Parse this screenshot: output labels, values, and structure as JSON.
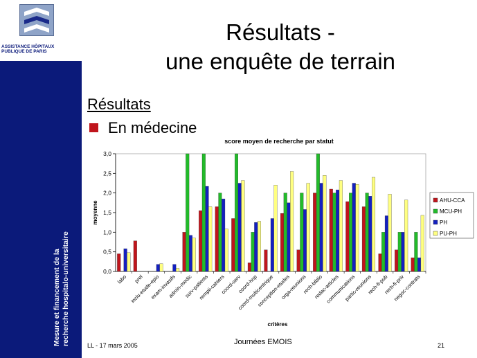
{
  "slide": {
    "title_line1": "Résultats -",
    "title_line2": "une enquête de terrain",
    "heading": "Résultats",
    "bullet": "En médecine",
    "footer_left": "LL - 17 mars 2005",
    "footer_center": "Journées EMOIS",
    "footer_right": "21"
  },
  "sidebar": {
    "logo_line1": "ASSISTANCE HÔPITAUX",
    "logo_line2": "PUBLIQUE DE PARIS",
    "caption_line1": "Mesure et financement de la",
    "caption_line2": "recherche hospitalo-universitaire",
    "background": "#0b1a7a"
  },
  "chart_data": {
    "type": "bar",
    "title": "score moyen de recherche par statut",
    "xlabel": "critères",
    "ylabel": "moyenne",
    "ylim": [
      0,
      3
    ],
    "yticks": [
      "0,0",
      "0,5",
      "1,0",
      "1,5",
      "2,0",
      "2,5",
      "3,0"
    ],
    "grid": false,
    "legend_position": "right",
    "categories": [
      "labo",
      "prel",
      "inclu-etude-epio",
      "exam-invasifs",
      "admin-medic",
      "surv-patients",
      "rempli-cahiers",
      "coord-serv",
      "coord-hop",
      "coord-multicentrique",
      "conception-etudes",
      "orga-reunions",
      "rech-biblio",
      "redac-articles",
      "communications",
      "partic-reunions",
      "rech-fi-pub",
      "rech-fi-priv",
      "negoc-contrats"
    ],
    "series": [
      {
        "name": "AHU-CCA",
        "color": "#c0151c",
        "values": [
          0.45,
          0.78,
          0.0,
          0.0,
          1.0,
          1.55,
          1.65,
          1.35,
          0.22,
          0.55,
          1.48,
          0.55,
          2.0,
          2.1,
          1.78,
          1.65,
          0.45,
          0.55,
          0.35
        ]
      },
      {
        "name": "MCU-PH",
        "color": "#22bb2a",
        "values": [
          0.0,
          0.0,
          0.0,
          0.0,
          3.0,
          3.0,
          2.0,
          3.0,
          1.0,
          0.0,
          2.0,
          2.0,
          3.0,
          2.0,
          2.0,
          2.0,
          1.0,
          1.0,
          1.0
        ]
      },
      {
        "name": "PH",
        "color": "#1420c0",
        "values": [
          0.58,
          0.0,
          0.18,
          0.18,
          0.92,
          2.17,
          1.85,
          2.25,
          1.25,
          1.35,
          1.75,
          1.58,
          2.25,
          2.08,
          2.25,
          1.92,
          1.42,
          1.0,
          0.35
        ]
      },
      {
        "name": "PU-PH",
        "color": "#ffff80",
        "values": [
          0.48,
          0.0,
          0.2,
          0.08,
          0.85,
          1.65,
          1.08,
          2.32,
          1.28,
          2.2,
          2.55,
          2.25,
          2.45,
          2.32,
          2.22,
          2.4,
          1.97,
          1.82,
          1.43
        ]
      }
    ]
  }
}
